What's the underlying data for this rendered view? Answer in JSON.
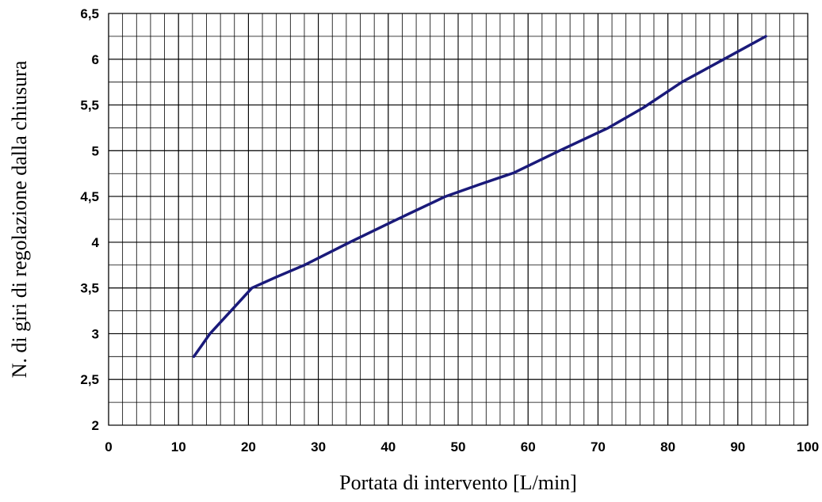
{
  "chart_data": {
    "type": "line",
    "title": "",
    "xlabel": "Portata di intervento [L/min]",
    "ylabel": "N. di giri di regolazione dalla chiusura",
    "xlim": [
      0,
      100
    ],
    "ylim": [
      2,
      6.5
    ],
    "x_ticks": [
      0,
      10,
      20,
      30,
      40,
      50,
      60,
      70,
      80,
      90,
      100
    ],
    "x_tick_labels": [
      "0",
      "10",
      "20",
      "30",
      "40",
      "50",
      "60",
      "70",
      "80",
      "90",
      "100"
    ],
    "y_ticks": [
      2,
      2.5,
      3,
      3.5,
      4,
      4.5,
      5,
      5.5,
      6,
      6.5
    ],
    "y_tick_labels": [
      "2",
      "2,5",
      "3",
      "3,5",
      "4",
      "4,5",
      "5",
      "5,5",
      "6",
      "6,5"
    ],
    "grid": true,
    "legend": "none",
    "series": [
      {
        "color": "#1a1a7a",
        "x": [
          12.2,
          14.5,
          17.5,
          20.5,
          24.0,
          28.0,
          34.5,
          41.0,
          48.2,
          53.0,
          58.0,
          64.5,
          71.5,
          76.5,
          82.0,
          88.0,
          94.0
        ],
        "y": [
          2.75,
          3.0,
          3.25,
          3.5,
          3.62,
          3.75,
          4.0,
          4.24,
          4.5,
          4.63,
          4.76,
          5.0,
          5.25,
          5.47,
          5.75,
          6.0,
          6.25
        ]
      }
    ]
  }
}
